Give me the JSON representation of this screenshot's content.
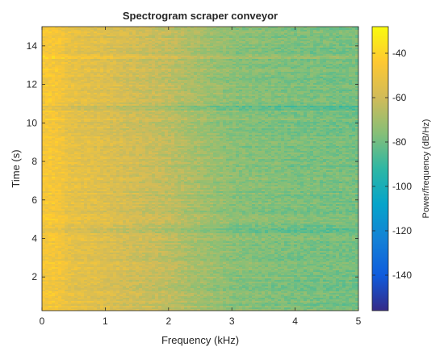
{
  "chart_data": {
    "type": "heatmap",
    "title": "Spectrogram scraper conveyor",
    "xlabel": "Frequency (kHz)",
    "ylabel": "Time (s)",
    "colorbar_label": "Power/frequency (dB/Hz)",
    "xlim": [
      0,
      5
    ],
    "ylim": [
      0.25,
      15
    ],
    "clim": [
      -156,
      -28
    ],
    "x_ticks": [
      0,
      1,
      2,
      3,
      4,
      5
    ],
    "x_tick_labels": [
      "0",
      "1",
      "2",
      "3",
      "4",
      "5"
    ],
    "y_ticks": [
      2,
      4,
      6,
      8,
      10,
      12,
      14
    ],
    "y_tick_labels": [
      "2",
      "4",
      "6",
      "8",
      "10",
      "12",
      "14"
    ],
    "colorbar_ticks": [
      -40,
      -60,
      -80,
      -100,
      -120,
      -140
    ],
    "colorbar_tick_labels": [
      "-40",
      "-60",
      "-80",
      "-100",
      "-120",
      "-140"
    ],
    "colormap": "parula",
    "colormap_stops": [
      "#352a87",
      "#0f5cdd",
      "#1481d6",
      "#06a4ca",
      "#2eb7a4",
      "#87bf77",
      "#d1bb59",
      "#fec832",
      "#f9fb0e"
    ],
    "power_profile_db": {
      "frequency_khz": [
        0,
        0.1,
        0.3,
        0.4,
        1.0,
        2.0,
        2.5,
        3.0,
        4.0,
        5.0
      ],
      "power": [
        -48,
        -46,
        -48,
        -52,
        -56,
        -64,
        -70,
        -75,
        -78,
        -79
      ]
    },
    "low_power_time_bands_s": [
      4.4,
      10.8
    ],
    "high_power_time_bands_s": [
      13.4
    ]
  }
}
